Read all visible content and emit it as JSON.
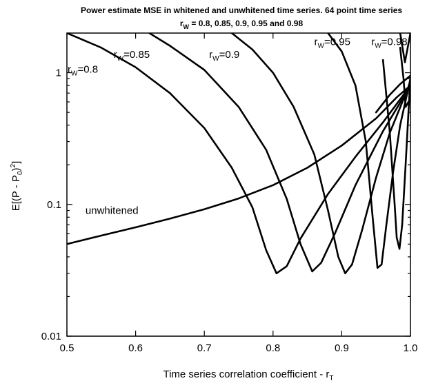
{
  "chart_data": {
    "type": "line",
    "title": "Power estimate MSE in whitened and unwhitened time series. 64 point time series",
    "subtitle_pre": "r",
    "subtitle_sub": "W",
    "subtitle_post": " = 0.8, 0.85, 0.9, 0.95 and 0.98",
    "xlabel_pre": "Time series correlation coefficient - r",
    "xlabel_sub": "T",
    "ylabel": "E[(P - P0)2]",
    "ylabel_parts": {
      "a": "E[(P - P",
      "sub": "0",
      "b": ")",
      "sup": "2",
      "c": "]"
    },
    "xlim": [
      0.5,
      1.0
    ],
    "ylim": [
      0.01,
      2.0
    ],
    "yscale": "log",
    "grid": false,
    "xticks": [
      0.5,
      0.6,
      0.7,
      0.8,
      0.9,
      1.0
    ],
    "xtick_labels": [
      "0.5",
      "0.6",
      "0.7",
      "0.8",
      "0.9",
      "1.0"
    ],
    "yticks": [
      0.01,
      0.1,
      1
    ],
    "ytick_labels": [
      "0.01",
      "0.1",
      "1"
    ],
    "series": [
      {
        "name": "unwhitened",
        "label": {
          "text": "unwhitened",
          "x": 0.527,
          "y": 0.085
        },
        "points": [
          [
            0.5,
            0.05
          ],
          [
            0.55,
            0.058
          ],
          [
            0.6,
            0.067
          ],
          [
            0.65,
            0.078
          ],
          [
            0.7,
            0.092
          ],
          [
            0.75,
            0.111
          ],
          [
            0.8,
            0.14
          ],
          [
            0.85,
            0.19
          ],
          [
            0.9,
            0.28
          ],
          [
            0.95,
            0.45
          ],
          [
            0.98,
            0.65
          ],
          [
            1.0,
            0.8
          ]
        ]
      },
      {
        "name_pre": "r",
        "name_sub": "W",
        "name_post": "=0.8",
        "label": {
          "x": 0.501,
          "y": 1.0
        },
        "points": [
          [
            0.5,
            2.0
          ],
          [
            0.55,
            1.55
          ],
          [
            0.6,
            1.1
          ],
          [
            0.65,
            0.7
          ],
          [
            0.7,
            0.38
          ],
          [
            0.74,
            0.19
          ],
          [
            0.77,
            0.095
          ],
          [
            0.79,
            0.045
          ],
          [
            0.805,
            0.03
          ],
          [
            0.82,
            0.034
          ],
          [
            0.84,
            0.055
          ],
          [
            0.88,
            0.12
          ],
          [
            0.92,
            0.23
          ],
          [
            0.96,
            0.42
          ],
          [
            1.0,
            0.8
          ]
        ]
      },
      {
        "name_pre": "r",
        "name_sub": "W",
        "name_post": "=0.85",
        "label": {
          "x": 0.568,
          "y": 1.3
        },
        "points": [
          [
            0.62,
            2.0
          ],
          [
            0.65,
            1.6
          ],
          [
            0.7,
            1.05
          ],
          [
            0.75,
            0.55
          ],
          [
            0.79,
            0.26
          ],
          [
            0.82,
            0.11
          ],
          [
            0.84,
            0.05
          ],
          [
            0.857,
            0.031
          ],
          [
            0.87,
            0.036
          ],
          [
            0.89,
            0.06
          ],
          [
            0.92,
            0.14
          ],
          [
            0.96,
            0.36
          ],
          [
            1.0,
            0.8
          ]
        ]
      },
      {
        "name_pre": "r",
        "name_sub": "W",
        "name_post": "=0.9",
        "label": {
          "x": 0.707,
          "y": 1.3
        },
        "points": [
          [
            0.74,
            2.0
          ],
          [
            0.77,
            1.5
          ],
          [
            0.8,
            1.0
          ],
          [
            0.83,
            0.55
          ],
          [
            0.86,
            0.24
          ],
          [
            0.88,
            0.09
          ],
          [
            0.895,
            0.04
          ],
          [
            0.905,
            0.03
          ],
          [
            0.915,
            0.035
          ],
          [
            0.93,
            0.065
          ],
          [
            0.95,
            0.16
          ],
          [
            0.97,
            0.35
          ],
          [
            1.0,
            0.85
          ]
        ]
      },
      {
        "name_pre": "r",
        "name_sub": "W",
        "name_post": "=0.95",
        "label": {
          "x": 0.86,
          "y": 1.62
        },
        "points": [
          [
            0.88,
            2.0
          ],
          [
            0.9,
            1.45
          ],
          [
            0.92,
            0.8
          ],
          [
            0.935,
            0.3
          ],
          [
            0.945,
            0.08
          ],
          [
            0.952,
            0.033
          ],
          [
            0.958,
            0.035
          ],
          [
            0.965,
            0.07
          ],
          [
            0.975,
            0.18
          ],
          [
            0.985,
            0.4
          ],
          [
            1.0,
            0.9
          ]
        ]
      },
      {
        "name_pre": "r",
        "name_sub": "W",
        "name_post": "=0.98",
        "label": {
          "x": 0.943,
          "y": 1.62
        },
        "points": [
          [
            0.96,
            1.25
          ],
          [
            0.97,
            0.35
          ],
          [
            0.977,
            0.1
          ],
          [
            0.98,
            0.056
          ],
          [
            0.984,
            0.046
          ],
          [
            0.988,
            0.07
          ],
          [
            0.993,
            0.2
          ],
          [
            1.0,
            0.95
          ]
        ]
      },
      {
        "name": "",
        "points": [
          [
            0.95,
            0.5
          ],
          [
            0.97,
            0.68
          ],
          [
            0.985,
            0.82
          ],
          [
            1.0,
            0.95
          ]
        ]
      },
      {
        "name": "",
        "points": [
          [
            0.985,
            1.55
          ],
          [
            0.99,
            0.9
          ],
          [
            0.993,
            0.55
          ],
          [
            0.997,
            0.6
          ],
          [
            1.0,
            0.62
          ]
        ]
      },
      {
        "name": "",
        "points": [
          [
            0.985,
            2.0
          ],
          [
            0.992,
            1.2
          ],
          [
            1.0,
            2.0
          ]
        ]
      }
    ]
  }
}
